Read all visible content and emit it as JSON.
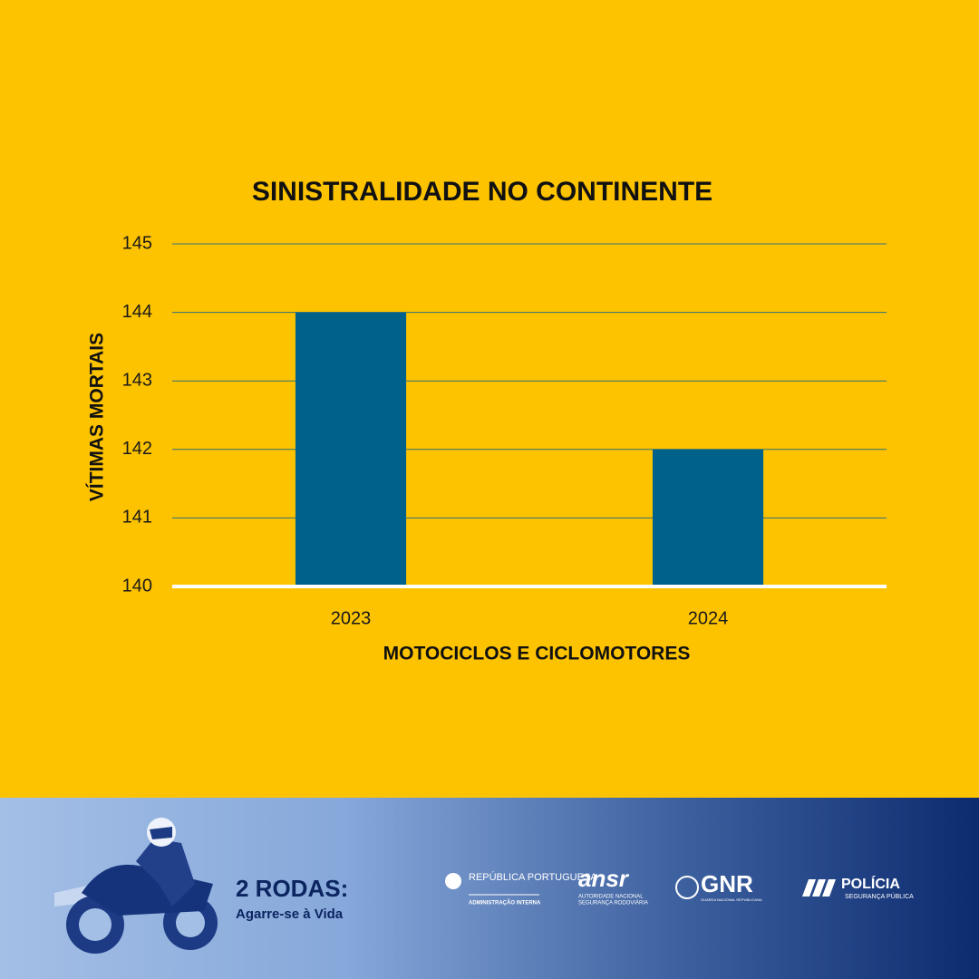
{
  "chart_data": {
    "type": "bar",
    "title": "SINISTRALIDADE NO CONTINENTE",
    "y_label": "VÍTIMAS MORTAIS",
    "x_label": "MOTOCICLOS E CICLOMOTORES",
    "categories": [
      "2023",
      "2024"
    ],
    "values": [
      144,
      142
    ],
    "color": "#00628a",
    "ylim": [
      140,
      145
    ],
    "yticks": [
      140,
      141,
      142,
      143,
      144,
      145
    ],
    "grid": true
  },
  "footer": {
    "campaign_title": "2 RODAS:",
    "campaign_subtitle": "Agarre-se à Vida",
    "logos": [
      {
        "name": "REPÚBLICA PORTUGUESA",
        "subtitle": "ADMINISTRAÇÃO INTERNA"
      },
      {
        "name": "ansr",
        "subtitle": "AUTORIDADE NACIONAL",
        "subtitle2": "SEGURANÇA RODOVIÁRIA"
      },
      {
        "name": "GNR",
        "subtitle": "GUARDA NACIONAL REPUBLICANA"
      },
      {
        "name": "POLÍCIA",
        "subtitle": "SEGURANÇA PÚBLICA"
      }
    ]
  }
}
